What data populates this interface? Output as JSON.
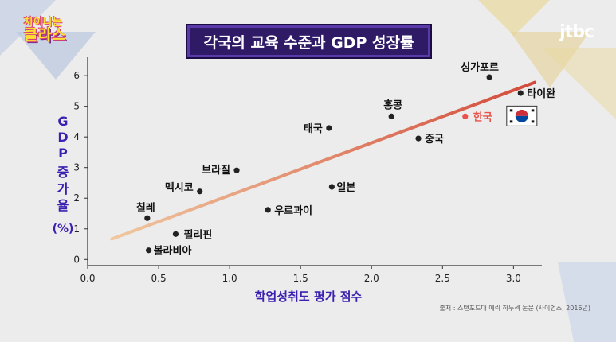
{
  "logo": {
    "line1": "차이나는",
    "line2": "클라스"
  },
  "channel_logo": "jtbc",
  "source_note": "출처 : 스탠포드대 에릭 하누섹 논문 (사이언스, 2016년)",
  "colors": {
    "title_bg": "#2f1a66",
    "axis_label": "#3a1fb0",
    "trend_start": "#f0c8a0",
    "trend_end": "#d24a3a",
    "highlight": "#e8524a",
    "point": "#222222"
  },
  "chart_data": {
    "type": "scatter",
    "title": "각국의 교육 수준과 GDP 성장률",
    "xlabel": "학업성취도 평가 점수",
    "ylabel": "GDP 증가율 (%)",
    "ylabel_parts": [
      "G",
      "D",
      "P",
      "증",
      "가",
      "율",
      "(%)"
    ],
    "xlim": [
      0.0,
      3.2
    ],
    "ylim": [
      -0.2,
      6.6
    ],
    "xticks": [
      "0.0",
      "0.5",
      "1.0",
      "1.5",
      "2.0",
      "2.5",
      "3.0"
    ],
    "xtick_values": [
      0.0,
      0.5,
      1.0,
      1.5,
      2.0,
      2.5,
      3.0
    ],
    "yticks": [
      "0",
      "1",
      "2",
      "3",
      "4",
      "5",
      "6"
    ],
    "ytick_values": [
      0,
      1,
      2,
      3,
      4,
      5,
      6
    ],
    "grid": false,
    "points": [
      {
        "label": "싱가포르",
        "x": 2.83,
        "y": 5.95,
        "highlight": false
      },
      {
        "label": "타이완",
        "x": 3.05,
        "y": 5.43,
        "highlight": false
      },
      {
        "label": "홍콩",
        "x": 2.14,
        "y": 4.67,
        "highlight": false
      },
      {
        "label": "한국",
        "x": 2.66,
        "y": 4.67,
        "highlight": true
      },
      {
        "label": "태국",
        "x": 1.7,
        "y": 4.29,
        "highlight": false
      },
      {
        "label": "중국",
        "x": 2.33,
        "y": 3.95,
        "highlight": false
      },
      {
        "label": "브라질",
        "x": 1.05,
        "y": 2.91,
        "highlight": false
      },
      {
        "label": "멕시코",
        "x": 0.79,
        "y": 2.22,
        "highlight": false
      },
      {
        "label": "일본",
        "x": 1.72,
        "y": 2.37,
        "highlight": false
      },
      {
        "label": "우르과이",
        "x": 1.27,
        "y": 1.62,
        "highlight": false
      },
      {
        "label": "칠레",
        "x": 0.42,
        "y": 1.35,
        "highlight": false
      },
      {
        "label": "필리핀",
        "x": 0.62,
        "y": 0.83,
        "highlight": false
      },
      {
        "label": "볼라비아",
        "x": 0.43,
        "y": 0.3,
        "highlight": false
      }
    ],
    "trendline": {
      "x": [
        0.17,
        3.15
      ],
      "y": [
        0.67,
        5.78
      ]
    }
  }
}
